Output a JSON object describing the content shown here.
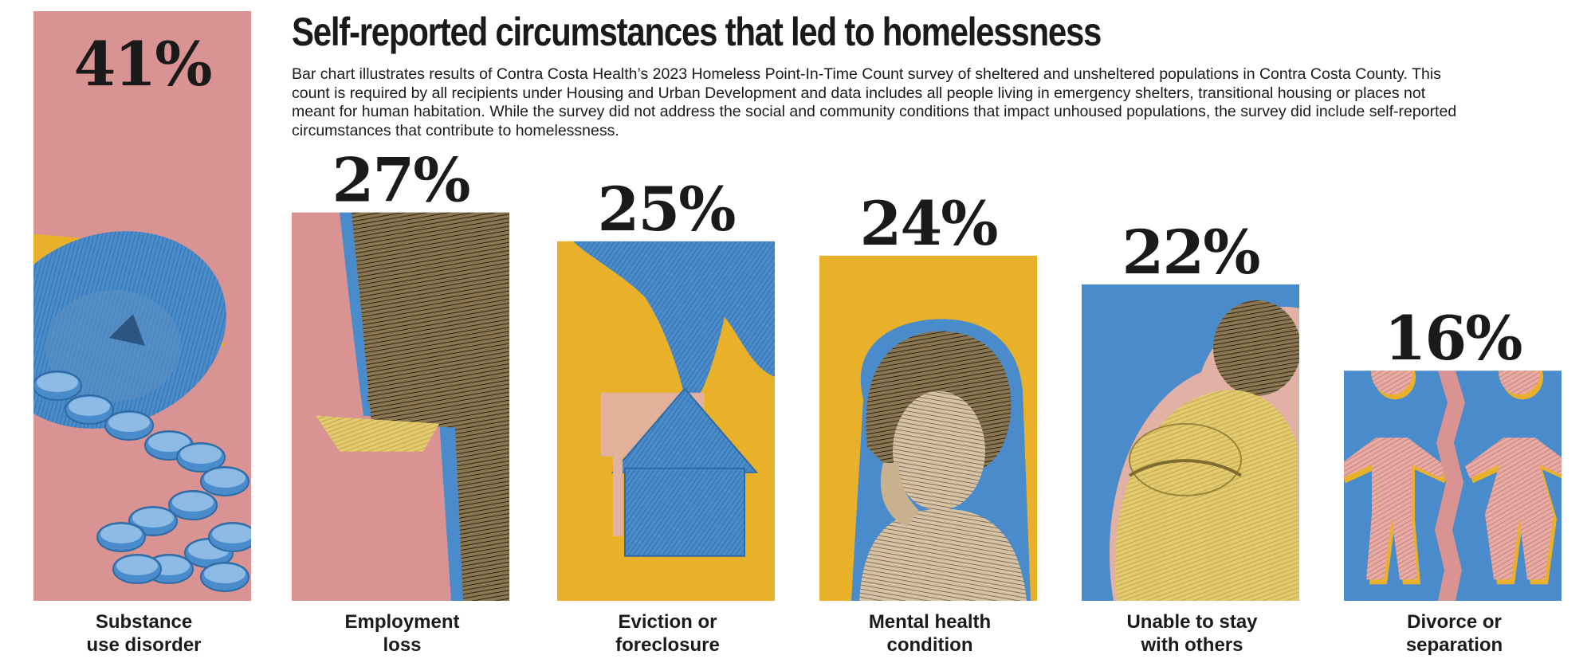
{
  "chart_data": {
    "type": "bar",
    "title": "Self-reported circumstances that led to homelessness",
    "subtitle": "Bar chart illustrates results of Contra Costa Health’s 2023 Homeless Point-In-Time Count survey of sheltered and unsheltered populations in Contra Costa County. This count is required by all recipients under Housing and Urban Development and data includes all people living in emergency shelters, transitional housing or places not meant for human habitation. While the survey did not address the social and community conditions that impact unhoused populations, the survey did include self-reported circumstances that contribute to homelessness.",
    "categories": [
      [
        "Substance",
        "use disorder"
      ],
      [
        "Employment",
        "loss"
      ],
      [
        "Eviction or",
        "foreclosure"
      ],
      [
        "Mental health",
        "condition"
      ],
      [
        "Unable to stay",
        "with others"
      ],
      [
        "Divorce or",
        "separation"
      ]
    ],
    "values": [
      41,
      27,
      25,
      24,
      22,
      16
    ],
    "value_labels": [
      "41%",
      "27%",
      "25%",
      "24%",
      "22%",
      "16%"
    ],
    "illustrations": [
      "spilled-pill-bottle",
      "empty-pocket",
      "hand-holding-money-house",
      "woman-with-head-in-hand",
      "person-hugging-knees",
      "torn-paper-couple"
    ],
    "ylim": [
      0,
      41
    ],
    "xlabel": "",
    "ylabel": "",
    "grid": false,
    "colors": {
      "pink": "#d99393",
      "blue": "#4a8ccb",
      "gold": "#e9b12a",
      "ink": "#1a1a1a",
      "tone_dark": "#4a3f2a",
      "tone_yellow": "#e4ca6f",
      "tone_pink": "#e2b1a5"
    }
  }
}
